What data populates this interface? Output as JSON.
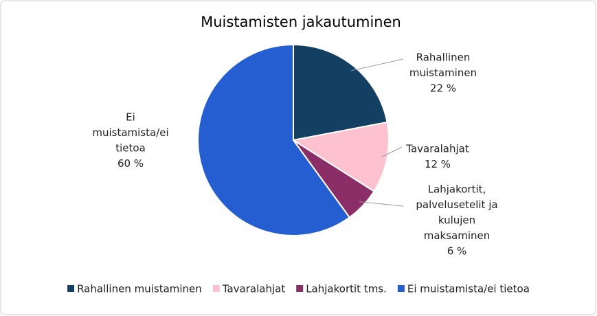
{
  "chart_data": {
    "type": "pie",
    "title": "Muistamisten jakautuminen",
    "categories": [
      "Rahallinen muistaminen",
      "Tavaralahjat",
      "Lahjakortit tms.",
      "Ei muistamista/ei tietoa"
    ],
    "slice_labels": [
      [
        "Rahallinen",
        "muistaminen"
      ],
      [
        "Tavaralahjat"
      ],
      [
        "Lahjakortit,",
        "palvelusetelit ja",
        "kulujen",
        "maksaminen"
      ],
      [
        "Ei",
        "muistamista/ei",
        "tietoa"
      ]
    ],
    "values": [
      22,
      12,
      6,
      60
    ],
    "value_labels": [
      "22 %",
      "12 %",
      "6 %",
      "60 %"
    ],
    "colors": [
      "#133f63",
      "#fdc1d0",
      "#8b2d66",
      "#255ed0"
    ],
    "legend": "bottom"
  }
}
